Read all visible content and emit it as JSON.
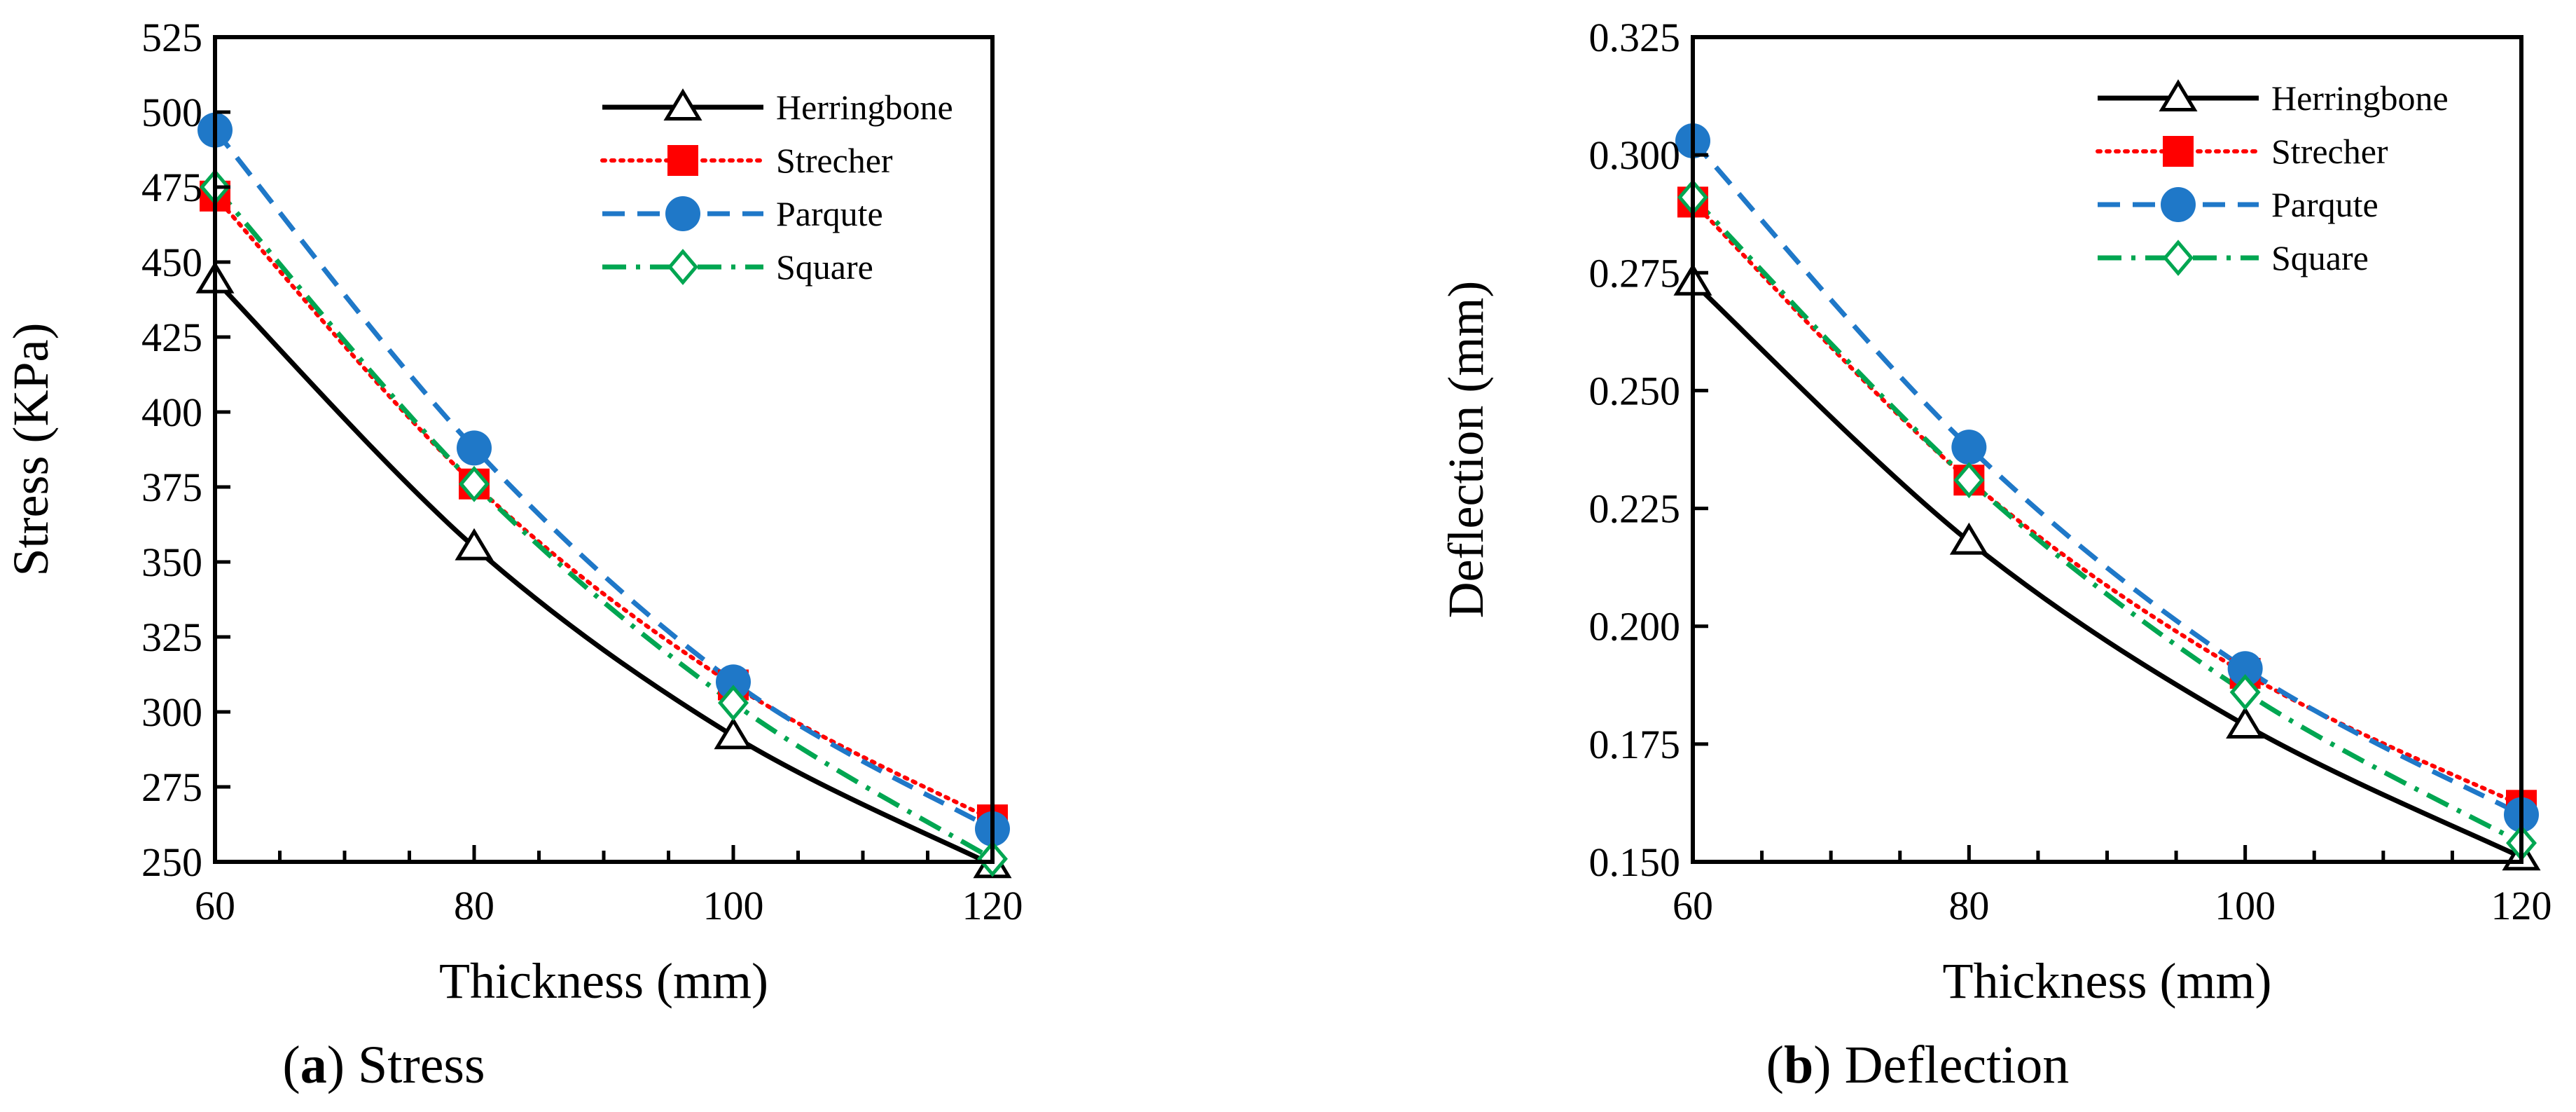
{
  "figure": {
    "panels": [
      {
        "caption_letter": "a",
        "caption_text": ") Stress",
        "caption_open": "("
      },
      {
        "caption_letter": "b",
        "caption_text": ") Deflection",
        "caption_open": "("
      }
    ]
  },
  "chart_data": [
    {
      "type": "line",
      "title": "",
      "xlabel": "Thickness (mm)",
      "ylabel": "Stress (KPa)",
      "x": [
        60,
        80,
        100,
        120
      ],
      "xlim": [
        60,
        120
      ],
      "ylim": [
        250,
        525
      ],
      "xticks": [
        60,
        80,
        100,
        120
      ],
      "xtick_labels": [
        "60",
        "80",
        "100",
        "120"
      ],
      "yticks": [
        250,
        275,
        300,
        325,
        350,
        375,
        400,
        425,
        450,
        475,
        500,
        525
      ],
      "ytick_labels": [
        "250",
        "275",
        "300",
        "325",
        "350",
        "375",
        "400",
        "425",
        "450",
        "475",
        "500",
        "525"
      ],
      "grid": false,
      "legend_position": "top-right",
      "series": [
        {
          "name": "Herringbone",
          "values": [
            444,
            355,
            292,
            249
          ],
          "color": "#000000",
          "marker": "open-triangle",
          "line": "solid"
        },
        {
          "name": "Strecher",
          "values": [
            472,
            376,
            309,
            264
          ],
          "color": "#ff0000",
          "marker": "filled-square",
          "line": "dotted"
        },
        {
          "name": "Parqute",
          "values": [
            494,
            388,
            310,
            261
          ],
          "color": "#1f78c8",
          "marker": "filled-circle",
          "line": "dashed"
        },
        {
          "name": "Square",
          "values": [
            475,
            376,
            303,
            251
          ],
          "color": "#00a651",
          "marker": "open-diamond",
          "line": "dashdot"
        }
      ]
    },
    {
      "type": "line",
      "title": "",
      "xlabel": "Thickness (mm)",
      "ylabel": "Deflection (mm)",
      "x": [
        60,
        80,
        100,
        120
      ],
      "xlim": [
        60,
        120
      ],
      "ylim": [
        0.15,
        0.325
      ],
      "xticks": [
        60,
        80,
        100,
        120
      ],
      "xtick_labels": [
        "60",
        "80",
        "100",
        "120"
      ],
      "yticks": [
        0.15,
        0.175,
        0.2,
        0.225,
        0.25,
        0.275,
        0.3,
        0.325
      ],
      "ytick_labels": [
        "0.150",
        "0.175",
        "0.200",
        "0.225",
        "0.250",
        "0.275",
        "0.300",
        "0.325"
      ],
      "grid": false,
      "legend_position": "top-right",
      "series": [
        {
          "name": "Herringbone",
          "values": [
            0.273,
            0.218,
            0.179,
            0.151
          ],
          "color": "#000000",
          "marker": "open-triangle",
          "line": "solid"
        },
        {
          "name": "Strecher",
          "values": [
            0.29,
            0.231,
            0.19,
            0.162
          ],
          "color": "#ff0000",
          "marker": "filled-square",
          "line": "dotted"
        },
        {
          "name": "Parqute",
          "values": [
            0.303,
            0.238,
            0.191,
            0.16
          ],
          "color": "#1f78c8",
          "marker": "filled-circle",
          "line": "dashed"
        },
        {
          "name": "Square",
          "values": [
            0.291,
            0.231,
            0.186,
            0.154
          ],
          "color": "#00a651",
          "marker": "open-diamond",
          "line": "dashdot"
        }
      ]
    }
  ]
}
